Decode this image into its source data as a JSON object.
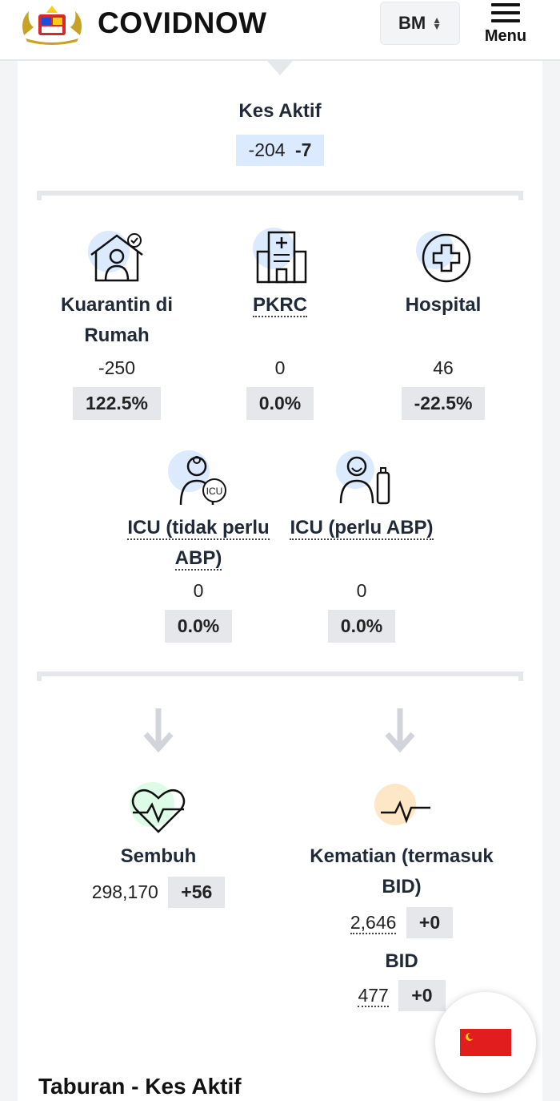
{
  "header": {
    "brand": "COVIDNOW",
    "lang": "BM",
    "menu_label": "Menu"
  },
  "active": {
    "title": "Kes Aktif",
    "value": "-204",
    "delta": "-7"
  },
  "row1": [
    {
      "label": "Kuarantin di Rumah",
      "value": "-250",
      "pct": "122.5%",
      "icon": "home-quarantine-icon"
    },
    {
      "label": "PKRC",
      "value": "0",
      "pct": "0.0%",
      "icon": "hospital-building-icon"
    },
    {
      "label": "Hospital",
      "value": "46",
      "pct": "-22.5%",
      "icon": "medical-cross-icon"
    }
  ],
  "row2": [
    {
      "label_line1": "ICU (tidak perlu",
      "label_line2": "ABP)",
      "value": "0",
      "pct": "0.0%",
      "icon": "doctor-icu-icon"
    },
    {
      "label_line1": "ICU (perlu ABP)",
      "value": "0",
      "pct": "0.0%",
      "icon": "patient-ventilator-icon"
    }
  ],
  "recovered": {
    "label": "Sembuh",
    "value": "298,170",
    "delta": "+56",
    "icon": "heart-pulse-icon"
  },
  "deaths": {
    "label_line1": "Kematian (termasuk",
    "label_line2": "BID)",
    "value": "2,646",
    "delta": "+0",
    "bid_label": "BID",
    "bid_value": "477",
    "bid_delta": "+0",
    "icon": "pulse-line-icon"
  },
  "section_title": "Taburan - Kes Aktif",
  "colors": {
    "active_bg": "#dbeafe",
    "badge_bg": "#e5e7eb",
    "recovered_circle": "#dcfce7",
    "death_circle": "#fde7c7",
    "icon_circle": "#dbeafe",
    "flag_red": "#e11d1d"
  }
}
